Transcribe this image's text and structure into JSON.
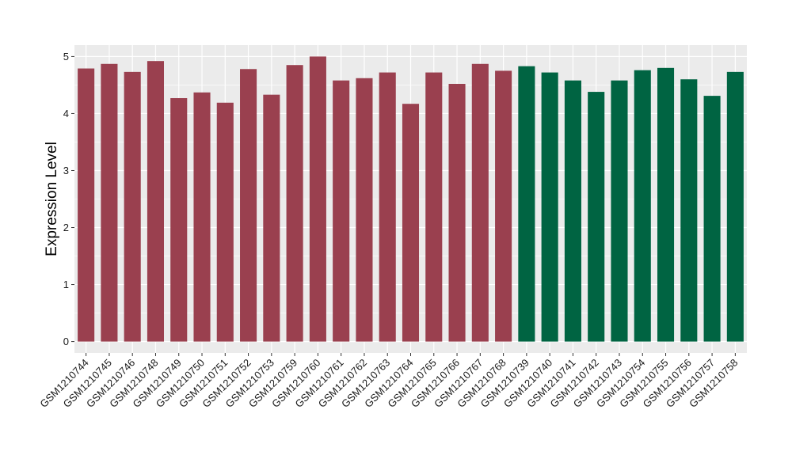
{
  "chart_data": {
    "type": "bar",
    "title": "",
    "xlabel": "",
    "ylabel": "Expression Level",
    "ylim": [
      -0.2,
      5.2
    ],
    "yticks": [
      0,
      1,
      2,
      3,
      4,
      5
    ],
    "grid": true,
    "legend": "none",
    "categories": [
      "GSM1210744",
      "GSM1210745",
      "GSM1210746",
      "GSM1210748",
      "GSM1210749",
      "GSM1210750",
      "GSM1210751",
      "GSM1210752",
      "GSM1210753",
      "GSM1210759",
      "GSM1210760",
      "GSM1210761",
      "GSM1210762",
      "GSM1210763",
      "GSM1210764",
      "GSM1210765",
      "GSM1210766",
      "GSM1210767",
      "GSM1210768",
      "GSM1210739",
      "GSM1210740",
      "GSM1210741",
      "GSM1210742",
      "GSM1210743",
      "GSM1210754",
      "GSM1210755",
      "GSM1210756",
      "GSM1210757",
      "GSM1210758"
    ],
    "values": [
      4.79,
      4.87,
      4.73,
      4.92,
      4.27,
      4.37,
      4.19,
      4.78,
      4.33,
      4.85,
      5.0,
      4.58,
      4.62,
      4.72,
      4.17,
      4.72,
      4.52,
      4.87,
      4.75,
      4.83,
      4.72,
      4.58,
      4.38,
      4.58,
      4.76,
      4.8,
      4.6,
      4.31,
      4.73
    ],
    "groups": [
      0,
      0,
      0,
      0,
      0,
      0,
      0,
      0,
      0,
      0,
      0,
      0,
      0,
      0,
      0,
      0,
      0,
      0,
      0,
      1,
      1,
      1,
      1,
      1,
      1,
      1,
      1,
      1,
      1
    ],
    "group_colors": [
      "#9a404f",
      "#006442"
    ],
    "panel_background": "#ebebeb",
    "grid_color": "#ffffff"
  }
}
